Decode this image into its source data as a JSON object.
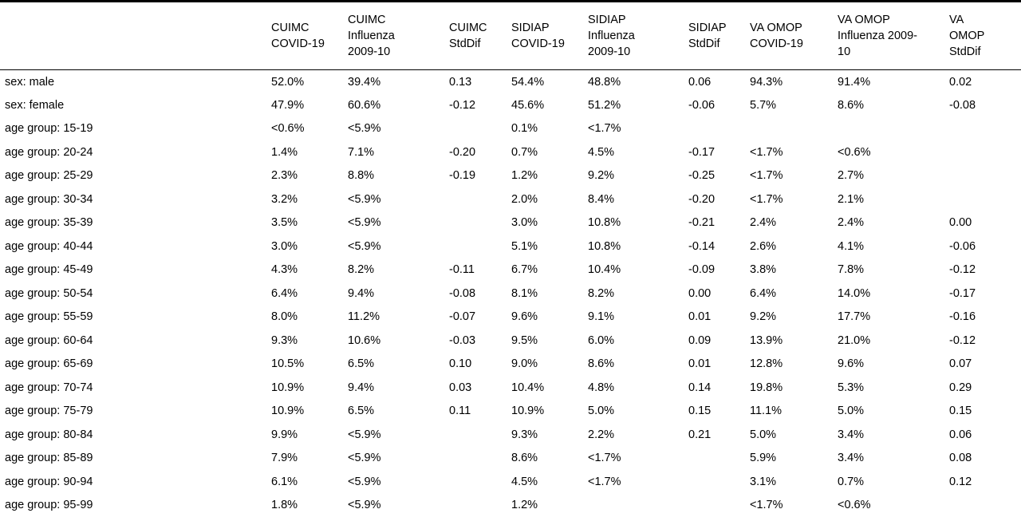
{
  "table": {
    "headers": [
      "",
      "CUIMC\nCOVID-19",
      "CUIMC\nInfluenza\n2009-10",
      "CUIMC\nStdDif",
      "SIDIAP\nCOVID-19",
      "SIDIAP\nInfluenza\n2009-10",
      "SIDIAP\nStdDif",
      "VA OMOP\nCOVID-19",
      "VA OMOP\nInfluenza 2009-\n10",
      "VA\nOMOP\nStdDif"
    ],
    "rows": [
      [
        "sex: male",
        "52.0%",
        "39.4%",
        "0.13",
        "54.4%",
        "48.8%",
        "0.06",
        "94.3%",
        "91.4%",
        "0.02"
      ],
      [
        "sex: female",
        "47.9%",
        "60.6%",
        "-0.12",
        "45.6%",
        "51.2%",
        "-0.06",
        "5.7%",
        "8.6%",
        "-0.08"
      ],
      [
        "age group: 15-19",
        "<0.6%",
        "<5.9%",
        "",
        "0.1%",
        "<1.7%",
        "",
        "",
        "",
        ""
      ],
      [
        "age group: 20-24",
        "1.4%",
        "7.1%",
        "-0.20",
        "0.7%",
        "4.5%",
        "-0.17",
        "<1.7%",
        "<0.6%",
        ""
      ],
      [
        "age group: 25-29",
        "2.3%",
        "8.8%",
        "-0.19",
        "1.2%",
        "9.2%",
        "-0.25",
        "<1.7%",
        "2.7%",
        ""
      ],
      [
        "age group: 30-34",
        "3.2%",
        "<5.9%",
        "",
        "2.0%",
        "8.4%",
        "-0.20",
        "<1.7%",
        "2.1%",
        ""
      ],
      [
        "age group: 35-39",
        "3.5%",
        "<5.9%",
        "",
        "3.0%",
        "10.8%",
        "-0.21",
        "2.4%",
        "2.4%",
        "0.00"
      ],
      [
        "age group: 40-44",
        "3.0%",
        "<5.9%",
        "",
        "5.1%",
        "10.8%",
        "-0.14",
        "2.6%",
        "4.1%",
        "-0.06"
      ],
      [
        "age group: 45-49",
        "4.3%",
        "8.2%",
        "-0.11",
        "6.7%",
        "10.4%",
        "-0.09",
        "3.8%",
        "7.8%",
        "-0.12"
      ],
      [
        "age group: 50-54",
        "6.4%",
        "9.4%",
        "-0.08",
        "8.1%",
        "8.2%",
        "0.00",
        "6.4%",
        "14.0%",
        "-0.17"
      ],
      [
        "age group: 55-59",
        "8.0%",
        "11.2%",
        "-0.07",
        "9.6%",
        "9.1%",
        "0.01",
        "9.2%",
        "17.7%",
        "-0.16"
      ],
      [
        "age group: 60-64",
        "9.3%",
        "10.6%",
        "-0.03",
        "9.5%",
        "6.0%",
        "0.09",
        "13.9%",
        "21.0%",
        "-0.12"
      ],
      [
        "age group: 65-69",
        "10.5%",
        "6.5%",
        "0.10",
        "9.0%",
        "8.6%",
        "0.01",
        "12.8%",
        "9.6%",
        "0.07"
      ],
      [
        "age group: 70-74",
        "10.9%",
        "9.4%",
        "0.03",
        "10.4%",
        "4.8%",
        "0.14",
        "19.8%",
        "5.3%",
        "0.29"
      ],
      [
        "age group: 75-79",
        "10.9%",
        "6.5%",
        "0.11",
        "10.9%",
        "5.0%",
        "0.15",
        "11.1%",
        "5.0%",
        "0.15"
      ],
      [
        "age group: 80-84",
        "9.9%",
        "<5.9%",
        "",
        "9.3%",
        "2.2%",
        "0.21",
        "5.0%",
        "3.4%",
        "0.06"
      ],
      [
        "age group: 85-89",
        "7.9%",
        "<5.9%",
        "",
        "8.6%",
        "<1.7%",
        "",
        "5.9%",
        "3.4%",
        "0.08"
      ],
      [
        "age group: 90-94",
        "6.1%",
        "<5.9%",
        "",
        "4.5%",
        "<1.7%",
        "",
        "3.1%",
        "0.7%",
        "0.12"
      ],
      [
        "age group: 95-99",
        "1.8%",
        "<5.9%",
        "",
        "1.2%",
        "",
        "",
        "<1.7%",
        "<0.6%",
        ""
      ]
    ]
  }
}
